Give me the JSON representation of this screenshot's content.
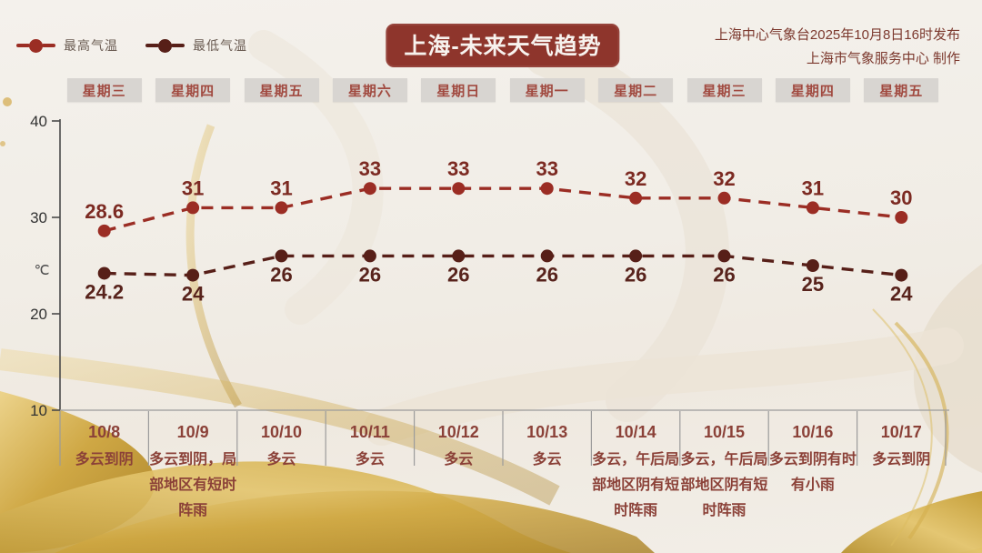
{
  "header": {
    "title": "上海-未来天气趋势",
    "source_line1": "上海中心气象台2025年10月8日16时发布",
    "source_line2": "上海市气象服务中心 制作",
    "legend": [
      {
        "label": "最高气温",
        "color": "#9b2d24"
      },
      {
        "label": "最低气温",
        "color": "#571f18"
      }
    ]
  },
  "colors": {
    "banner_bg": "#8e352c",
    "banner_text": "#f7f2ee",
    "weekday_box_bg": "#d8d5d1",
    "weekday_text": "#a14a40",
    "forecast_text": "#8b4138",
    "axis": "#4a4a4a",
    "grid": "#9b9b9b",
    "gold_accent": "#c9a13b"
  },
  "chart_data": {
    "type": "line",
    "line_style": "dashed",
    "grid": false,
    "legend_position": "top-left",
    "ylabel": "℃",
    "ylim": [
      10,
      40
    ],
    "yticks": [
      40,
      30,
      20,
      10
    ],
    "x": [
      "10/8",
      "10/9",
      "10/10",
      "10/11",
      "10/12",
      "10/13",
      "10/14",
      "10/15",
      "10/16",
      "10/17"
    ],
    "weekdays": [
      "星期三",
      "星期四",
      "星期五",
      "星期六",
      "星期日",
      "星期一",
      "星期二",
      "星期三",
      "星期四",
      "星期五"
    ],
    "series": [
      {
        "name": "最高气温",
        "color": "#9b2d24",
        "label_color": "#7c2a22",
        "label_side": "above",
        "values": [
          28.6,
          31,
          31,
          33,
          33,
          33,
          32,
          32,
          31,
          30
        ]
      },
      {
        "name": "最低气温",
        "color": "#571f18",
        "label_color": "#58231c",
        "label_side": "below",
        "values": [
          24.2,
          24,
          26,
          26,
          26,
          26,
          26,
          26,
          25,
          24
        ]
      }
    ]
  },
  "forecast": [
    {
      "weather": "多云到阴"
    },
    {
      "weather": "多云到阴，局部地区有短时阵雨"
    },
    {
      "weather": "多云"
    },
    {
      "weather": "多云"
    },
    {
      "weather": "多云"
    },
    {
      "weather": "多云"
    },
    {
      "weather": "多云，午后局部地区阴有短时阵雨"
    },
    {
      "weather": "多云，午后局部地区阴有短时阵雨"
    },
    {
      "weather": "多云到阴有时有小雨"
    },
    {
      "weather": "多云到阴"
    }
  ]
}
